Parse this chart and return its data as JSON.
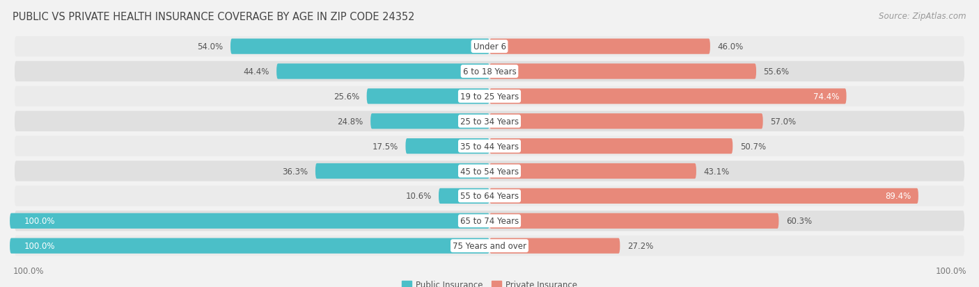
{
  "title": "PUBLIC VS PRIVATE HEALTH INSURANCE COVERAGE BY AGE IN ZIP CODE 24352",
  "source": "Source: ZipAtlas.com",
  "categories": [
    "Under 6",
    "6 to 18 Years",
    "19 to 25 Years",
    "25 to 34 Years",
    "35 to 44 Years",
    "45 to 54 Years",
    "55 to 64 Years",
    "65 to 74 Years",
    "75 Years and over"
  ],
  "public_values": [
    54.0,
    44.4,
    25.6,
    24.8,
    17.5,
    36.3,
    10.6,
    100.0,
    100.0
  ],
  "private_values": [
    46.0,
    55.6,
    74.4,
    57.0,
    50.7,
    43.1,
    89.4,
    60.3,
    27.2
  ],
  "public_color": "#4bbfc8",
  "private_color": "#e8897a",
  "public_label": "Public Insurance",
  "private_label": "Private Insurance",
  "background_color": "#f2f2f2",
  "row_color_light": "#ebebeb",
  "row_color_dark": "#e0e0e0",
  "max_value": 100.0,
  "bar_height": 0.62,
  "title_fontsize": 10.5,
  "label_fontsize": 8.5,
  "category_fontsize": 8.5,
  "source_fontsize": 8.5
}
